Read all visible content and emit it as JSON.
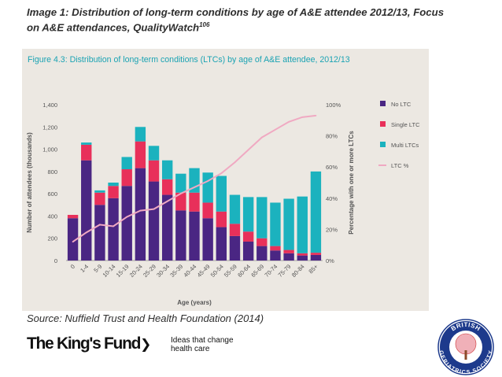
{
  "slide": {
    "title_line1": "Image 1: Distribution of long-term conditions by age of A&E attendee 2012/13, Focus",
    "title_line2": "on A&E attendances, QualityWatch",
    "title_ref": "106",
    "source": "Source: Nuffield Trust and Health Foundation (2014)",
    "logo_text": "The King's Fund",
    "logo_arrow": "❯",
    "tagline_line1": "Ideas that change",
    "tagline_line2": "health care",
    "seal_top_text": "BRITISH",
    "seal_bottom_text": "GERIATRICS SOCIETY"
  },
  "chart_data": {
    "type": "bar",
    "stacked": true,
    "title": "Figure 4.3: Distribution of long-term conditions (LTCs) by age of A&E attendee, 2012/13",
    "xlabel": "Age (years)",
    "ylabel": "Number of attendees (thousands)",
    "y2label": "Percentage with one or more LTCs",
    "ylim": [
      0,
      1400
    ],
    "y2lim": [
      0,
      100
    ],
    "yticks": [
      "0",
      "200",
      "400",
      "600",
      "800",
      "1,000",
      "1,200",
      "1,400"
    ],
    "y2ticks": [
      "0%",
      "20%",
      "40%",
      "60%",
      "80%",
      "100%"
    ],
    "categories": [
      "0",
      "1-4",
      "5-9",
      "10-14",
      "15-19",
      "20-24",
      "25-29",
      "30-34",
      "35-39",
      "40-44",
      "45-49",
      "50-54",
      "55-59",
      "60-64",
      "65-69",
      "70-74",
      "75-79",
      "80-84",
      "85+"
    ],
    "series": [
      {
        "name": "No LTC",
        "color": "#4a2683",
        "values": [
          380,
          900,
          500,
          560,
          670,
          830,
          710,
          590,
          450,
          440,
          380,
          300,
          220,
          170,
          130,
          90,
          65,
          45,
          50
        ]
      },
      {
        "name": "Single LTC",
        "color": "#e8305a",
        "values": [
          30,
          140,
          110,
          110,
          150,
          240,
          190,
          140,
          160,
          170,
          140,
          140,
          110,
          90,
          70,
          40,
          30,
          20,
          20
        ]
      },
      {
        "name": "Multi LTCs",
        "color": "#1bb2be",
        "values": [
          0,
          20,
          20,
          30,
          110,
          130,
          130,
          170,
          170,
          220,
          270,
          320,
          260,
          310,
          370,
          390,
          460,
          510,
          730
        ]
      },
      {
        "name": "LTC %",
        "color": "#f0a9c2",
        "axis": "right",
        "type": "line",
        "values": [
          12,
          18,
          23,
          22,
          28,
          32,
          33,
          38,
          43,
          47,
          51,
          56,
          63,
          71,
          79,
          84,
          89,
          92,
          93
        ]
      }
    ],
    "legend": "right",
    "grid": false
  }
}
